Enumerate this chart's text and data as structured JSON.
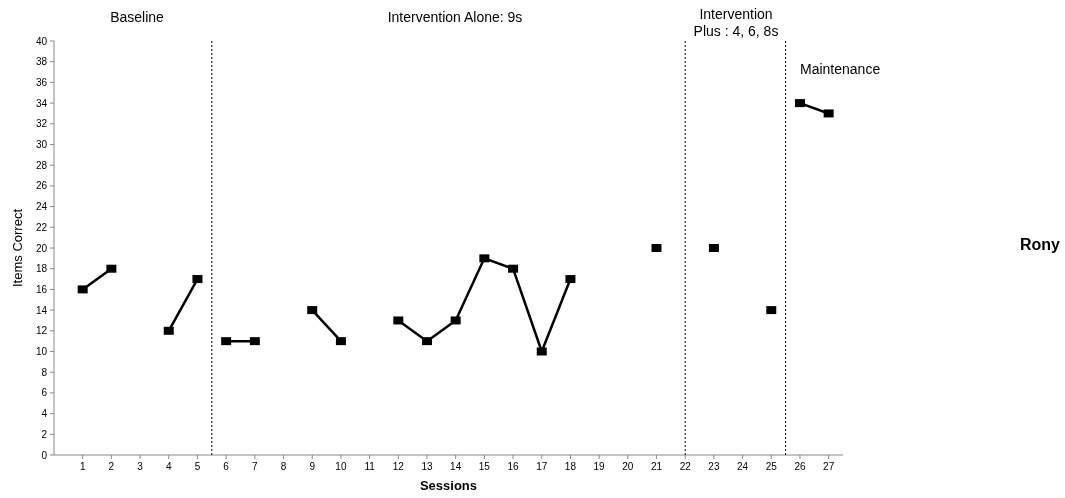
{
  "chart_data": {
    "type": "line",
    "xlabel": "Sessions",
    "ylabel": "Items Correct",
    "series": [
      {
        "color": "#000000",
        "x": [
          1,
          2,
          3,
          4,
          5
        ],
        "values": [
          16,
          18,
          null,
          12,
          17
        ]
      },
      {
        "color": "#000000",
        "x": [
          6,
          7,
          8,
          9,
          10,
          11,
          12,
          13,
          14,
          15,
          16,
          17,
          18,
          19,
          20,
          21
        ],
        "values": [
          11,
          11,
          null,
          14,
          11,
          null,
          13,
          11,
          13,
          19,
          18,
          10,
          17,
          null,
          null,
          20
        ]
      },
      {
        "color": "#000000",
        "x": [
          23,
          24,
          25
        ],
        "values": [
          20,
          null,
          14
        ]
      },
      {
        "color": "#000000",
        "x": [
          26,
          27
        ],
        "values": [
          34,
          33
        ]
      }
    ],
    "xlim": [
      0,
      27.5
    ],
    "xticks": [
      1,
      2,
      3,
      4,
      5,
      6,
      7,
      8,
      9,
      10,
      11,
      12,
      13,
      14,
      15,
      16,
      17,
      18,
      19,
      20,
      21,
      22,
      23,
      24,
      25,
      26,
      27
    ],
    "ylim": [
      0,
      40
    ],
    "yticks": [
      0,
      2,
      4,
      6,
      8,
      10,
      12,
      14,
      16,
      18,
      20,
      22,
      24,
      26,
      28,
      30,
      32,
      34,
      36,
      38,
      40
    ],
    "ref_lines": [
      {
        "axis": "x",
        "value": 5.5,
        "line_style": "dotted",
        "color": "#000000"
      },
      {
        "axis": "x",
        "value": 22,
        "line_style": "dotted",
        "color": "#000000"
      },
      {
        "axis": "x",
        "value": 25.5,
        "line_style": "dotted",
        "color": "#000000"
      }
    ],
    "annotations": [
      "Baseline",
      "Intervention Alone:  9s",
      "Intervention\nPlus : 4, 6, 8s",
      "Maintenance",
      "Rony"
    ],
    "marker": "square",
    "line_style": "solid",
    "grid": false
  }
}
